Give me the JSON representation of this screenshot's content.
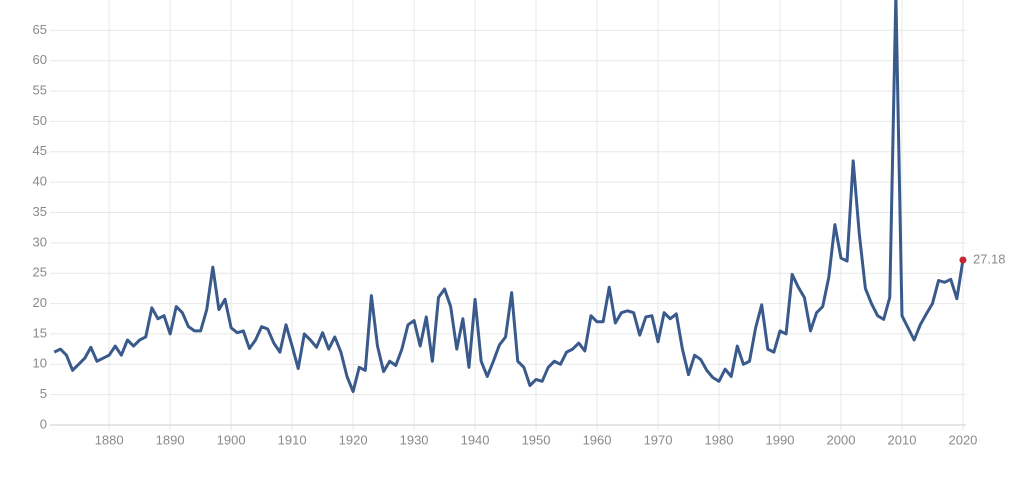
{
  "chart_data": {
    "type": "line",
    "x": [
      1871,
      1872,
      1873,
      1874,
      1875,
      1876,
      1877,
      1878,
      1879,
      1880,
      1881,
      1882,
      1883,
      1884,
      1885,
      1886,
      1887,
      1888,
      1889,
      1890,
      1891,
      1892,
      1893,
      1894,
      1895,
      1896,
      1897,
      1898,
      1899,
      1900,
      1901,
      1902,
      1903,
      1904,
      1905,
      1906,
      1907,
      1908,
      1909,
      1910,
      1911,
      1912,
      1913,
      1914,
      1915,
      1916,
      1917,
      1918,
      1919,
      1920,
      1921,
      1922,
      1923,
      1924,
      1925,
      1926,
      1927,
      1928,
      1929,
      1930,
      1931,
      1932,
      1933,
      1934,
      1935,
      1936,
      1937,
      1938,
      1939,
      1940,
      1941,
      1942,
      1943,
      1944,
      1945,
      1946,
      1947,
      1948,
      1949,
      1950,
      1951,
      1952,
      1953,
      1954,
      1955,
      1956,
      1957,
      1958,
      1959,
      1960,
      1961,
      1962,
      1963,
      1964,
      1965,
      1966,
      1967,
      1968,
      1969,
      1970,
      1971,
      1972,
      1973,
      1974,
      1975,
      1976,
      1977,
      1978,
      1979,
      1980,
      1981,
      1982,
      1983,
      1984,
      1985,
      1986,
      1987,
      1988,
      1989,
      1990,
      1991,
      1992,
      1993,
      1994,
      1995,
      1996,
      1997,
      1998,
      1999,
      2000,
      2001,
      2002,
      2003,
      2004,
      2005,
      2006,
      2007,
      2008,
      2009,
      2010,
      2011,
      2012,
      2013,
      2014,
      2015,
      2016,
      2017,
      2018,
      2019,
      2020
    ],
    "series": [
      {
        "color": "#3a5a8c",
        "values": [
          12,
          12.5,
          11.5,
          9,
          10,
          11,
          12.8,
          10.5,
          11,
          11.5,
          13,
          11.5,
          14,
          13,
          14,
          14.5,
          19.3,
          17.5,
          18,
          15,
          19.5,
          18.5,
          16.2,
          15.5,
          15.5,
          19,
          26,
          19,
          20.7,
          16,
          15.2,
          15.5,
          12.6,
          14,
          16.2,
          15.8,
          13.5,
          12,
          16.5,
          13,
          9.3,
          15,
          14,
          12.8,
          15.2,
          12.5,
          14.5,
          12,
          8,
          5.5,
          9.5,
          9,
          21.3,
          13,
          8.8,
          10.5,
          9.8,
          12.5,
          16.5,
          17.2,
          13,
          17.8,
          10.5,
          21,
          22.4,
          19.5,
          12.5,
          17.5,
          9.5,
          20.7,
          10.5,
          8,
          10.5,
          13.2,
          14.5,
          21.8,
          10.5,
          9.5,
          6.5,
          7.5,
          7.2,
          9.5,
          10.5,
          10,
          12,
          12.5,
          13.5,
          12.2,
          18,
          17,
          17,
          22.7,
          16.8,
          18.5,
          18.8,
          18.5,
          14.8,
          17.8,
          18,
          13.7,
          18.5,
          17.5,
          18.3,
          12.5,
          8.3,
          11.5,
          10.8,
          9,
          7.8,
          7.2,
          9.2,
          8,
          13,
          10,
          10.5,
          16,
          19.8,
          12.5,
          12,
          15.5,
          15,
          24.8,
          22.7,
          21,
          15.5,
          18.5,
          19.5,
          24.3,
          33,
          27.5,
          27,
          43.5,
          31.5,
          22.5,
          20,
          18,
          17.4,
          21,
          70.9,
          18,
          16,
          14,
          16.5,
          18.3,
          20,
          23.8,
          23.5,
          24,
          20.8,
          27.18
        ]
      }
    ],
    "highlight_color": "#c8262e",
    "xlim": [
      1870.3,
      2020.5
    ],
    "ylim": [
      0,
      70
    ],
    "xticks": [
      1880,
      1890,
      1900,
      1910,
      1920,
      1930,
      1940,
      1950,
      1960,
      1970,
      1980,
      1990,
      2000,
      2010,
      2020
    ],
    "yticks": [
      0,
      5,
      10,
      15,
      20,
      25,
      30,
      35,
      40,
      45,
      50,
      55,
      60,
      65
    ],
    "grid": true
  }
}
